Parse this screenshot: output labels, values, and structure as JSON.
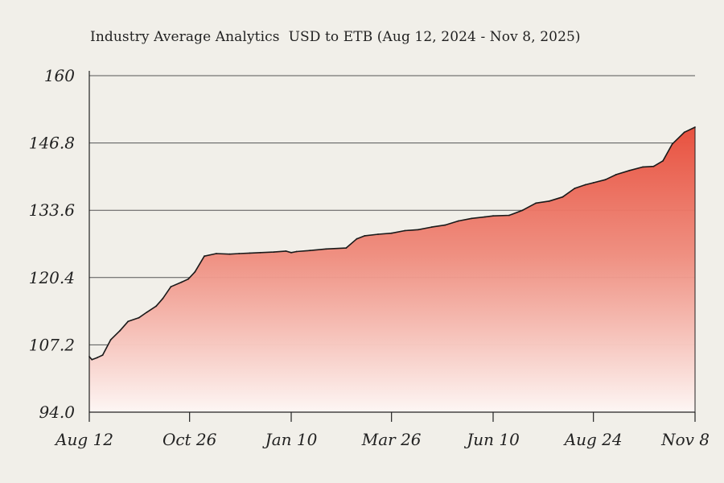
{
  "chart_data": {
    "type": "area",
    "title": "Industry Average Analytics  USD to ETB (Aug 12, 2024 - Nov 8, 2025)",
    "xlabel": "",
    "ylabel": "",
    "ylim": [
      94.0,
      160
    ],
    "y_ticks": [
      "94.0",
      "107.2",
      "120.4",
      "133.6",
      "146.8",
      "160"
    ],
    "y_tick_values": [
      94.0,
      107.2,
      120.4,
      133.6,
      146.8,
      160
    ],
    "x_ticks": [
      "Aug 12",
      "Oct 26",
      "Jan 10",
      "Mar 26",
      "Jun 10",
      "Aug 24",
      "Nov 8"
    ],
    "x_tick_values": [
      "2024-08-12",
      "2024-10-26",
      "2025-01-10",
      "2025-03-26",
      "2025-06-10",
      "2025-08-24",
      "2025-11-08"
    ],
    "grid": "horizontal",
    "legend": "none",
    "colors": {
      "fill_top": "#e8513f",
      "fill_bottom": "#fdf6f4",
      "line": "#1a1a1a",
      "grid": "#555555"
    },
    "x": [
      "2024-08-12",
      "2024-08-14",
      "2024-08-18",
      "2024-08-22",
      "2024-08-28",
      "2024-09-04",
      "2024-09-10",
      "2024-09-18",
      "2024-09-24",
      "2024-10-01",
      "2024-10-06",
      "2024-10-12",
      "2024-10-20",
      "2024-10-25",
      "2024-10-30",
      "2024-11-06",
      "2024-11-15",
      "2024-11-25",
      "2024-12-02",
      "2024-12-10",
      "2024-12-18",
      "2024-12-28",
      "2025-01-06",
      "2025-01-10",
      "2025-01-14",
      "2025-01-24",
      "2025-02-05",
      "2025-02-20",
      "2025-02-28",
      "2025-03-06",
      "2025-03-16",
      "2025-03-26",
      "2025-04-05",
      "2025-04-15",
      "2025-04-25",
      "2025-05-05",
      "2025-05-15",
      "2025-05-25",
      "2025-06-04",
      "2025-06-10",
      "2025-06-22",
      "2025-07-02",
      "2025-07-12",
      "2025-07-22",
      "2025-08-01",
      "2025-08-10",
      "2025-08-18",
      "2025-08-24",
      "2025-09-02",
      "2025-09-10",
      "2025-09-20",
      "2025-09-30",
      "2025-10-08",
      "2025-10-15",
      "2025-10-22",
      "2025-10-31",
      "2025-11-08"
    ],
    "values": [
      104.9,
      104.3,
      104.7,
      105.2,
      108.2,
      110.0,
      111.8,
      112.5,
      113.6,
      114.8,
      116.3,
      118.6,
      119.5,
      120.1,
      121.5,
      124.6,
      125.1,
      125.0,
      125.1,
      125.2,
      125.3,
      125.4,
      125.6,
      125.3,
      125.5,
      125.7,
      126.0,
      126.2,
      128.0,
      128.6,
      128.9,
      129.1,
      129.6,
      129.8,
      130.3,
      130.7,
      131.5,
      132.0,
      132.3,
      132.5,
      132.6,
      133.6,
      135.0,
      135.4,
      136.2,
      137.9,
      138.6,
      139.0,
      139.6,
      140.6,
      141.4,
      142.1,
      142.2,
      143.3,
      146.6,
      148.9,
      149.9
    ]
  }
}
